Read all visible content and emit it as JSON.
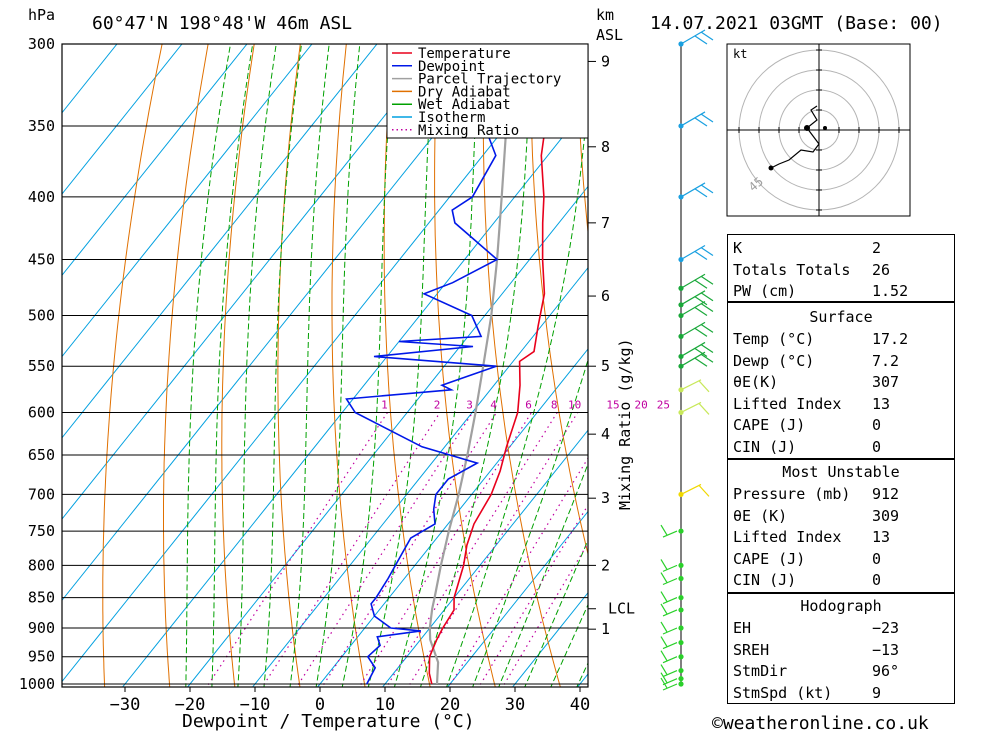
{
  "header": {
    "location": "60°47'N  198°48'W  46m  ASL",
    "datetime": "14.07.2021  03GMT  (Base: 00)",
    "hpa_label": "hPa",
    "km_label": "km",
    "asl_label": "ASL"
  },
  "footer": {
    "credit": "©weatheronline.co.uk"
  },
  "legend": [
    {
      "label": "Temperature",
      "color": "#e8001c",
      "style": "solid"
    },
    {
      "label": "Dewpoint",
      "color": "#0018e8",
      "style": "solid"
    },
    {
      "label": "Parcel Trajectory",
      "color": "#a0a0a0",
      "style": "solid"
    },
    {
      "label": "Dry Adiabat",
      "color": "#e07000",
      "style": "solid"
    },
    {
      "label": "Wet Adiabat",
      "color": "#00a000",
      "style": "solid"
    },
    {
      "label": "Isotherm",
      "color": "#00a0e0",
      "style": "solid"
    },
    {
      "label": "Mixing Ratio",
      "color": "#c000a0",
      "style": "dotted"
    }
  ],
  "chart_data": {
    "type": "skew-t",
    "xlabel": "Dewpoint / Temperature (°C)",
    "x_ticks": [
      -30,
      -20,
      -10,
      0,
      10,
      20,
      30,
      40
    ],
    "xlim": [
      -40,
      40
    ],
    "y_ticks_hpa": [
      300,
      350,
      400,
      450,
      500,
      550,
      600,
      650,
      700,
      750,
      800,
      850,
      900,
      950,
      1000
    ],
    "ylim_hpa": [
      1010,
      300
    ],
    "km_ticks": [
      {
        "label": "9",
        "p": 310
      },
      {
        "label": "8",
        "p": 364
      },
      {
        "label": "7",
        "p": 420
      },
      {
        "label": "6",
        "p": 482
      },
      {
        "label": "5",
        "p": 550
      },
      {
        "label": "4",
        "p": 625
      },
      {
        "label": "3",
        "p": 705
      },
      {
        "label": "2",
        "p": 800
      },
      {
        "label": "LCL",
        "p": 868
      },
      {
        "label": "1",
        "p": 902
      }
    ],
    "mixing_ratio_axis_label": "Mixing Ratio (g/kg)",
    "mixing_ratio_labels": [
      "1",
      "2",
      "3",
      "4",
      "6",
      "8",
      "10",
      "15",
      "20",
      "25"
    ],
    "mixing_ratios": [
      1,
      2,
      3,
      4,
      6,
      8,
      10,
      15,
      20,
      25
    ],
    "temperature": [
      [
        1000,
        17.2
      ],
      [
        980,
        15.5
      ],
      [
        950,
        13.5
      ],
      [
        920,
        12.5
      ],
      [
        900,
        12.0
      ],
      [
        870,
        11.5
      ],
      [
        850,
        10.0
      ],
      [
        800,
        7.5
      ],
      [
        770,
        5.5
      ],
      [
        740,
        4.0
      ],
      [
        700,
        3.0
      ],
      [
        670,
        1.5
      ],
      [
        640,
        -0.5
      ],
      [
        600,
        -3.0
      ],
      [
        570,
        -6.0
      ],
      [
        545,
        -9.0
      ],
      [
        535,
        -8.0
      ],
      [
        510,
        -10.5
      ],
      [
        480,
        -13.5
      ],
      [
        450,
        -18.0
      ],
      [
        420,
        -22.5
      ],
      [
        400,
        -25.5
      ],
      [
        370,
        -31.0
      ],
      [
        350,
        -34.0
      ],
      [
        320,
        -38.5
      ],
      [
        300,
        -42.0
      ]
    ],
    "dewpoint": [
      [
        1000,
        7.2
      ],
      [
        970,
        6.5
      ],
      [
        950,
        4.0
      ],
      [
        930,
        4.5
      ],
      [
        915,
        3.0
      ],
      [
        905,
        9.0
      ],
      [
        900,
        4.0
      ],
      [
        880,
        0.0
      ],
      [
        860,
        -2.0
      ],
      [
        850,
        -2.0
      ],
      [
        820,
        -2.5
      ],
      [
        800,
        -3.0
      ],
      [
        760,
        -4.0
      ],
      [
        740,
        -2.0
      ],
      [
        720,
        -4.0
      ],
      [
        700,
        -5.5
      ],
      [
        680,
        -5.5
      ],
      [
        660,
        -3.0
      ],
      [
        640,
        -13.5
      ],
      [
        600,
        -28.0
      ],
      [
        585,
        -31.0
      ],
      [
        575,
        -16.0
      ],
      [
        570,
        -18.0
      ],
      [
        550,
        -12.0
      ],
      [
        540,
        -32.0
      ],
      [
        530,
        -18.0
      ],
      [
        525,
        -30.0
      ],
      [
        520,
        -18.0
      ],
      [
        500,
        -22.0
      ],
      [
        480,
        -32.0
      ],
      [
        470,
        -29.0
      ],
      [
        450,
        -25.0
      ],
      [
        420,
        -36.0
      ],
      [
        410,
        -38.0
      ],
      [
        400,
        -36.5
      ],
      [
        370,
        -38.0
      ],
      [
        355,
        -42.0
      ],
      [
        340,
        -44.0
      ],
      [
        320,
        -42.0
      ],
      [
        310,
        -45.0
      ],
      [
        300,
        -47.0
      ]
    ],
    "parcel": [
      [
        1000,
        18.0
      ],
      [
        960,
        15.5
      ],
      [
        920,
        11.5
      ],
      [
        900,
        10.0
      ],
      [
        868,
        8.0
      ],
      [
        850,
        7.0
      ],
      [
        800,
        4.0
      ],
      [
        750,
        1.0
      ],
      [
        700,
        -2.0
      ],
      [
        650,
        -5.5
      ],
      [
        600,
        -9.5
      ],
      [
        550,
        -14.0
      ],
      [
        500,
        -19.0
      ],
      [
        450,
        -25.0
      ],
      [
        400,
        -32.0
      ],
      [
        350,
        -40.0
      ],
      [
        310,
        -47.0
      ]
    ],
    "wind_barbs_p": [
      1000,
      990,
      975,
      950,
      925,
      900,
      870,
      850,
      820,
      800,
      750,
      700,
      600,
      575,
      550,
      540,
      520,
      500,
      490,
      475,
      450,
      400,
      350,
      300
    ],
    "hodograph": {
      "unit_label": "kt",
      "ring_label": "45"
    }
  },
  "stats": {
    "general": [
      {
        "k": "K",
        "v": "2"
      },
      {
        "k": "Totals Totals",
        "v": "26"
      },
      {
        "k": "PW (cm)",
        "v": "1.52"
      }
    ],
    "surface": {
      "title": "Surface",
      "rows": [
        {
          "k": "Temp (°C)",
          "v": "17.2"
        },
        {
          "k": "Dewp (°C)",
          "v": "7.2"
        },
        {
          "k": "θE(K)",
          "v": "307"
        },
        {
          "k": "Lifted Index",
          "v": "13"
        },
        {
          "k": "CAPE (J)",
          "v": "0"
        },
        {
          "k": "CIN (J)",
          "v": "0"
        }
      ]
    },
    "most_unstable": {
      "title": "Most Unstable",
      "rows": [
        {
          "k": "Pressure (mb)",
          "v": "912"
        },
        {
          "k": "θE (K)",
          "v": "309"
        },
        {
          "k": "Lifted Index",
          "v": "13"
        },
        {
          "k": "CAPE (J)",
          "v": "0"
        },
        {
          "k": "CIN (J)",
          "v": "0"
        }
      ]
    },
    "hodograph": {
      "title": "Hodograph",
      "rows": [
        {
          "k": "EH",
          "v": "-23"
        },
        {
          "k": "SREH",
          "v": "-13"
        },
        {
          "k": "StmDir",
          "v": "96°"
        },
        {
          "k": "StmSpd (kt)",
          "v": "9"
        }
      ]
    }
  }
}
